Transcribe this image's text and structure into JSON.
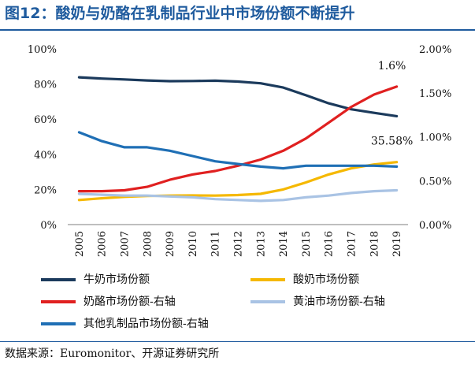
{
  "title": "图12：酸奶与奶酪在乳制品行业中市场份额不断提升",
  "source": "数据来源：Euromonitor、开源证券研究所",
  "chart_data": {
    "type": "line",
    "x": [
      "2005",
      "2006",
      "2007",
      "2008",
      "2009",
      "2010",
      "2011",
      "2012",
      "2013",
      "2014",
      "2015",
      "2016",
      "2017",
      "2018",
      "2019"
    ],
    "left_axis": {
      "ticks": [
        "0%",
        "20%",
        "40%",
        "60%",
        "80%",
        "100%"
      ],
      "range": [
        0,
        100
      ]
    },
    "right_axis": {
      "ticks": [
        "0.00%",
        "0.50%",
        "1.00%",
        "1.50%",
        "2.00%"
      ],
      "range": [
        0,
        2
      ]
    },
    "series": [
      {
        "name": "牛奶市场份额",
        "axis": "left",
        "color": "#1b3a5c",
        "values": [
          83.8,
          83.1,
          82.6,
          82.0,
          81.6,
          81.7,
          81.9,
          81.4,
          80.4,
          78.0,
          73.6,
          69.0,
          65.6,
          63.6,
          61.7
        ]
      },
      {
        "name": "酸奶市场份额",
        "axis": "left",
        "color": "#f5b800",
        "values": [
          14.0,
          15.0,
          15.8,
          16.3,
          16.5,
          16.6,
          16.5,
          16.8,
          17.5,
          20.0,
          24.0,
          28.5,
          32.0,
          34.2,
          35.58
        ]
      },
      {
        "name": "奶酪市场份额-右轴",
        "axis": "right",
        "color": "#e02020",
        "values": [
          0.38,
          0.38,
          0.39,
          0.43,
          0.51,
          0.57,
          0.61,
          0.67,
          0.74,
          0.84,
          0.98,
          1.16,
          1.34,
          1.48,
          1.57
        ]
      },
      {
        "name": "黄油市场份额-右轴",
        "axis": "right",
        "color": "#a9c3e4",
        "values": [
          0.35,
          0.34,
          0.33,
          0.33,
          0.32,
          0.31,
          0.29,
          0.28,
          0.27,
          0.28,
          0.31,
          0.33,
          0.36,
          0.38,
          0.39
        ]
      },
      {
        "name": "其他乳制品市场份额-右轴",
        "axis": "right",
        "color": "#1f6fb5",
        "values": [
          1.05,
          0.95,
          0.88,
          0.88,
          0.84,
          0.78,
          0.72,
          0.69,
          0.66,
          0.64,
          0.67,
          0.67,
          0.67,
          0.67,
          0.66
        ]
      }
    ],
    "annotations": [
      {
        "text": "1.6%",
        "series": "奶酪市场份额-右轴"
      },
      {
        "text": "35.58%",
        "series": "酸奶市场份额"
      }
    ],
    "legend": {
      "position": "bottom",
      "items": [
        "牛奶市场份额",
        "酸奶市场份额",
        "奶酪市场份额-右轴",
        "黄油市场份额-右轴",
        "其他乳制品市场份额-右轴"
      ]
    }
  }
}
